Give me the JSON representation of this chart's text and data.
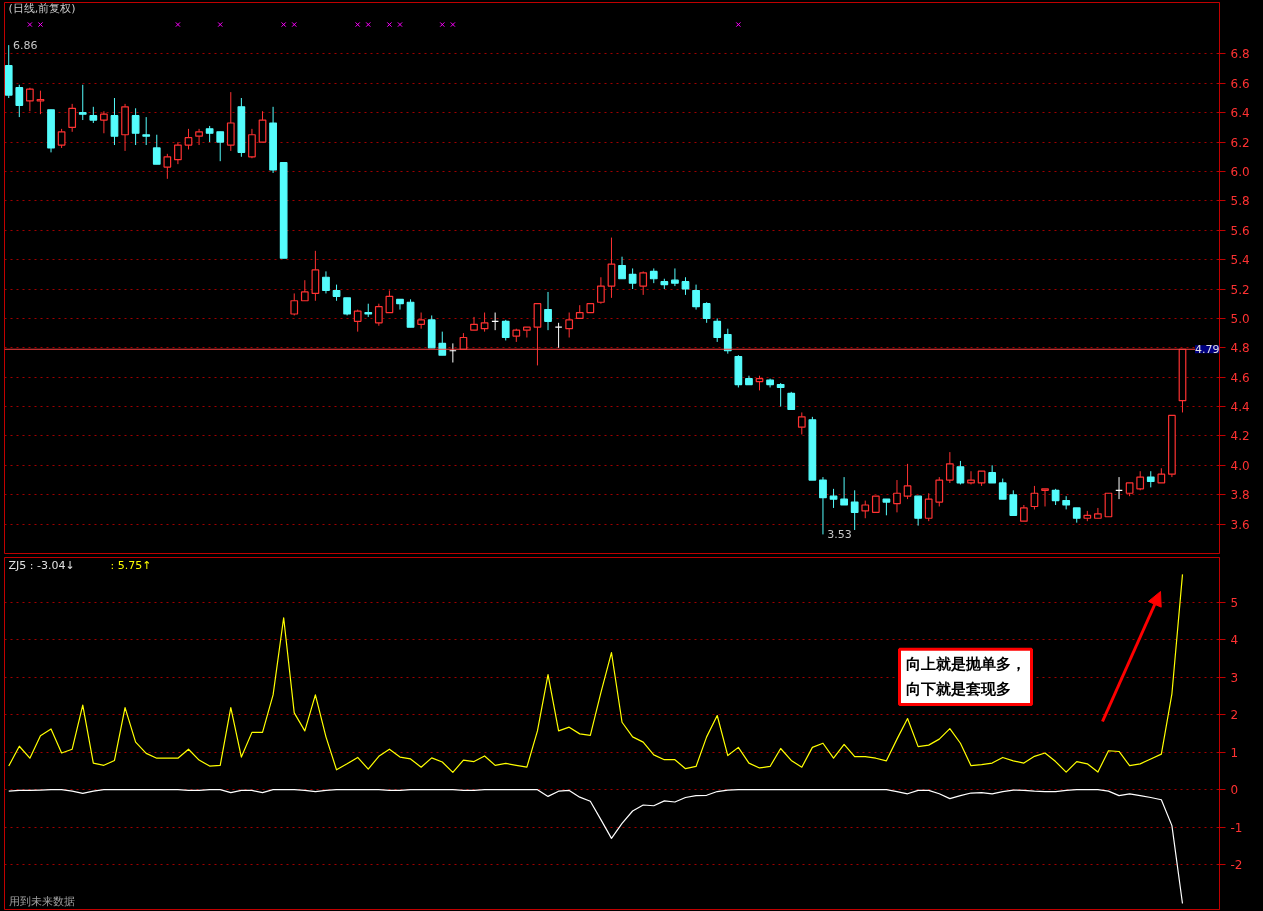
{
  "chart_data": [
    {
      "type": "candlestick",
      "title": "(日线,前复权)",
      "categories": [
        null,
        null,
        null,
        null,
        null,
        null,
        null,
        null,
        null,
        null,
        null,
        null,
        null,
        null,
        null,
        null,
        null,
        null,
        null,
        null,
        null,
        null,
        null,
        null,
        null,
        null,
        null,
        null,
        null,
        null,
        null,
        null,
        null,
        null,
        null,
        null,
        null,
        null,
        null,
        null,
        null,
        null,
        null,
        null,
        null,
        null,
        null,
        null,
        null,
        null,
        null,
        null,
        null,
        null,
        null,
        null,
        null,
        null,
        null,
        null,
        null,
        null,
        null,
        null,
        null,
        null,
        null,
        null,
        null,
        null,
        null,
        null,
        null,
        null,
        null,
        null,
        null,
        null,
        null,
        null,
        null,
        null,
        null,
        null,
        null,
        null,
        null,
        null,
        null,
        null,
        null,
        null,
        null,
        null,
        null,
        null,
        null,
        null,
        null,
        null,
        null,
        null,
        null,
        null,
        null,
        null,
        null,
        null,
        null,
        null,
        null,
        null
      ],
      "ohlc": [
        [
          6.72,
          6.86,
          6.5,
          6.52
        ],
        [
          6.57,
          6.59,
          6.37,
          6.45
        ],
        [
          6.48,
          6.57,
          6.41,
          6.56
        ],
        [
          6.48,
          6.55,
          6.39,
          6.49
        ],
        [
          6.42,
          6.42,
          6.13,
          6.16
        ],
        [
          6.18,
          6.29,
          6.16,
          6.27
        ],
        [
          6.3,
          6.46,
          6.27,
          6.43
        ],
        [
          6.4,
          6.59,
          6.35,
          6.39
        ],
        [
          6.38,
          6.44,
          6.33,
          6.35
        ],
        [
          6.35,
          6.41,
          6.26,
          6.39
        ],
        [
          6.38,
          6.5,
          6.18,
          6.24
        ],
        [
          6.25,
          6.46,
          6.14,
          6.44
        ],
        [
          6.38,
          6.43,
          6.18,
          6.26
        ],
        [
          6.25,
          6.37,
          6.18,
          6.24
        ],
        [
          6.16,
          6.25,
          6.05,
          6.05
        ],
        [
          6.03,
          6.12,
          5.95,
          6.1
        ],
        [
          6.08,
          6.2,
          6.05,
          6.18
        ],
        [
          6.18,
          6.29,
          6.15,
          6.23
        ],
        [
          6.24,
          6.29,
          6.18,
          6.27
        ],
        [
          6.29,
          6.31,
          6.2,
          6.26
        ],
        [
          6.27,
          6.27,
          6.07,
          6.2
        ],
        [
          6.18,
          6.54,
          6.14,
          6.33
        ],
        [
          6.44,
          6.5,
          6.1,
          6.13
        ],
        [
          6.1,
          6.29,
          6.09,
          6.25
        ],
        [
          6.2,
          6.41,
          6.2,
          6.35
        ],
        [
          6.33,
          6.44,
          5.99,
          6.01
        ],
        [
          6.06,
          6.06,
          5.41,
          5.41
        ],
        [
          5.03,
          5.17,
          5.02,
          5.12
        ],
        [
          5.12,
          5.26,
          5.12,
          5.18
        ],
        [
          5.17,
          5.46,
          5.12,
          5.33
        ],
        [
          5.28,
          5.32,
          5.17,
          5.19
        ],
        [
          5.19,
          5.23,
          5.12,
          5.15
        ],
        [
          5.14,
          5.14,
          5.02,
          5.03
        ],
        [
          4.98,
          5.06,
          4.91,
          5.05
        ],
        [
          5.04,
          5.1,
          5.01,
          5.03
        ],
        [
          4.97,
          5.1,
          4.95,
          5.08
        ],
        [
          5.04,
          5.19,
          5.04,
          5.15
        ],
        [
          5.13,
          5.13,
          5.06,
          5.1
        ],
        [
          5.11,
          5.13,
          4.94,
          4.94
        ],
        [
          4.96,
          5.04,
          4.93,
          4.99
        ],
        [
          4.99,
          5.02,
          4.8,
          4.8
        ],
        [
          4.83,
          4.91,
          4.75,
          4.75
        ],
        [
          4.78,
          4.83,
          4.7,
          4.78
        ],
        [
          4.79,
          4.9,
          4.79,
          4.87
        ],
        [
          4.92,
          5.01,
          4.92,
          4.96
        ],
        [
          4.93,
          5.04,
          4.91,
          4.97
        ],
        [
          4.98,
          5.04,
          4.92,
          4.98
        ],
        [
          4.98,
          4.99,
          4.85,
          4.87
        ],
        [
          4.88,
          4.93,
          4.84,
          4.92
        ],
        [
          4.92,
          4.94,
          4.87,
          4.94
        ],
        [
          4.94,
          5.1,
          4.68,
          5.1
        ],
        [
          5.06,
          5.18,
          4.92,
          4.98
        ],
        [
          4.94,
          4.97,
          4.8,
          4.94
        ],
        [
          4.93,
          5.04,
          4.87,
          4.99
        ],
        [
          5.0,
          5.09,
          5.0,
          5.04
        ],
        [
          5.04,
          5.1,
          5.04,
          5.1
        ],
        [
          5.11,
          5.28,
          5.1,
          5.22
        ],
        [
          5.22,
          5.55,
          5.14,
          5.37
        ],
        [
          5.36,
          5.42,
          5.27,
          5.27
        ],
        [
          5.3,
          5.34,
          5.2,
          5.24
        ],
        [
          5.22,
          5.32,
          5.16,
          5.31
        ],
        [
          5.32,
          5.34,
          5.24,
          5.27
        ],
        [
          5.25,
          5.27,
          5.2,
          5.23
        ],
        [
          5.26,
          5.34,
          5.22,
          5.24
        ],
        [
          5.25,
          5.28,
          5.16,
          5.2
        ],
        [
          5.19,
          5.23,
          5.06,
          5.08
        ],
        [
          5.1,
          5.11,
          4.97,
          5.0
        ],
        [
          4.98,
          5.0,
          4.84,
          4.87
        ],
        [
          4.89,
          4.93,
          4.76,
          4.78
        ],
        [
          4.74,
          4.75,
          4.53,
          4.55
        ],
        [
          4.59,
          4.61,
          4.55,
          4.55
        ],
        [
          4.57,
          4.61,
          4.51,
          4.59
        ],
        [
          4.58,
          4.59,
          4.53,
          4.55
        ],
        [
          4.55,
          4.56,
          4.4,
          4.53
        ],
        [
          4.49,
          4.5,
          4.38,
          4.38
        ],
        [
          4.26,
          4.36,
          4.21,
          4.33
        ],
        [
          4.31,
          4.33,
          3.9,
          3.9
        ],
        [
          3.9,
          3.92,
          3.53,
          3.78
        ],
        [
          3.79,
          3.84,
          3.71,
          3.77
        ],
        [
          3.77,
          3.92,
          3.73,
          3.73
        ],
        [
          3.75,
          3.83,
          3.56,
          3.68
        ],
        [
          3.69,
          3.76,
          3.64,
          3.73
        ],
        [
          3.68,
          3.79,
          3.68,
          3.79
        ],
        [
          3.77,
          3.77,
          3.66,
          3.75
        ],
        [
          3.74,
          3.9,
          3.68,
          3.81
        ],
        [
          3.79,
          4.01,
          3.77,
          3.86
        ],
        [
          3.79,
          3.79,
          3.59,
          3.64
        ],
        [
          3.64,
          3.81,
          3.62,
          3.77
        ],
        [
          3.75,
          3.92,
          3.72,
          3.9
        ],
        [
          3.9,
          4.09,
          3.88,
          4.01
        ],
        [
          3.99,
          4.03,
          3.87,
          3.88
        ],
        [
          3.88,
          3.96,
          3.87,
          3.9
        ],
        [
          3.88,
          3.96,
          3.86,
          3.96
        ],
        [
          3.95,
          4.0,
          3.88,
          3.88
        ],
        [
          3.88,
          3.91,
          3.77,
          3.77
        ],
        [
          3.8,
          3.83,
          3.66,
          3.66
        ],
        [
          3.62,
          3.73,
          3.62,
          3.71
        ],
        [
          3.72,
          3.86,
          3.7,
          3.81
        ],
        [
          3.83,
          3.84,
          3.72,
          3.84
        ],
        [
          3.83,
          3.84,
          3.73,
          3.76
        ],
        [
          3.76,
          3.79,
          3.7,
          3.73
        ],
        [
          3.71,
          3.71,
          3.61,
          3.64
        ],
        [
          3.64,
          3.69,
          3.62,
          3.66
        ],
        [
          3.64,
          3.71,
          3.64,
          3.67
        ],
        [
          3.65,
          3.81,
          3.65,
          3.81
        ],
        [
          3.83,
          3.92,
          3.77,
          3.83
        ],
        [
          3.81,
          3.88,
          3.79,
          3.88
        ],
        [
          3.84,
          3.96,
          3.83,
          3.92
        ],
        [
          3.92,
          3.96,
          3.85,
          3.89
        ],
        [
          3.88,
          3.98,
          3.88,
          3.94
        ],
        [
          3.94,
          4.34,
          3.92,
          4.34
        ],
        [
          4.44,
          4.79,
          4.36,
          4.79
        ]
      ],
      "colors": [
        "#54fcfc",
        "#54fcfc",
        "#ff3232",
        "#ff3232",
        "#54fcfc",
        "#ff3232",
        "#ff3232",
        "#54fcfc",
        "#54fcfc",
        "#ff3232",
        "#54fcfc",
        "#ff3232",
        "#54fcfc",
        "#54fcfc",
        "#54fcfc",
        "#ff3232",
        "#ff3232",
        "#ff3232",
        "#ff3232",
        "#54fcfc",
        "#54fcfc",
        "#ff3232",
        "#54fcfc",
        "#ff3232",
        "#ff3232",
        "#54fcfc",
        "#54fcfc",
        "#ff3232",
        "#ff3232",
        "#ff3232",
        "#54fcfc",
        "#54fcfc",
        "#54fcfc",
        "#ff3232",
        "#54fcfc",
        "#ff3232",
        "#ff3232",
        "#54fcfc",
        "#54fcfc",
        "#ff3232",
        "#54fcfc",
        "#54fcfc",
        "#ffffff",
        "#ff3232",
        "#ff3232",
        "#ff3232",
        "#ffffff",
        "#54fcfc",
        "#ff3232",
        "#ff3232",
        "#ff3232",
        "#54fcfc",
        "#ffffff",
        "#ff3232",
        "#ff3232",
        "#ff3232",
        "#ff3232",
        "#ff3232",
        "#54fcfc",
        "#54fcfc",
        "#ff3232",
        "#54fcfc",
        "#54fcfc",
        "#54fcfc",
        "#54fcfc",
        "#54fcfc",
        "#54fcfc",
        "#54fcfc",
        "#54fcfc",
        "#54fcfc",
        "#54fcfc",
        "#ff3232",
        "#54fcfc",
        "#54fcfc",
        "#54fcfc",
        "#ff3232",
        "#54fcfc",
        "#54fcfc",
        "#54fcfc",
        "#54fcfc",
        "#54fcfc",
        "#ff3232",
        "#ff3232",
        "#54fcfc",
        "#ff3232",
        "#ff3232",
        "#54fcfc",
        "#ff3232",
        "#ff3232",
        "#ff3232",
        "#54fcfc",
        "#ff3232",
        "#ff3232",
        "#54fcfc",
        "#54fcfc",
        "#54fcfc",
        "#ff3232",
        "#ff3232",
        "#ff3232",
        "#54fcfc",
        "#54fcfc",
        "#54fcfc",
        "#ff3232",
        "#ff3232",
        "#ff3232",
        "#ffffff",
        "#ff3232",
        "#ff3232",
        "#54fcfc",
        "#ff3232",
        "#ff3232",
        "#ff3232"
      ],
      "series": [
        {
          "type": "scatter",
          "marker": "cross",
          "color": "#ff00ff",
          "values": [
            null,
            null,
            7.0,
            7.0,
            null,
            null,
            null,
            null,
            null,
            null,
            null,
            null,
            null,
            null,
            null,
            null,
            7.0,
            null,
            null,
            null,
            7.0,
            null,
            null,
            null,
            null,
            null,
            7.0,
            7.0,
            null,
            null,
            null,
            null,
            null,
            7.0,
            7.0,
            null,
            7.0,
            7.0,
            null,
            null,
            null,
            7.0,
            7.0,
            null,
            null,
            null,
            null,
            null,
            null,
            null,
            null,
            null,
            null,
            null,
            null,
            null,
            null,
            null,
            null,
            null,
            null,
            null,
            null,
            null,
            null,
            null,
            null,
            null,
            null,
            7.0,
            null,
            null,
            null,
            null,
            null,
            null,
            null,
            null,
            null,
            null,
            null,
            null,
            null,
            null,
            null,
            null,
            null,
            null,
            null,
            null,
            null,
            null,
            null,
            null,
            null,
            null,
            null,
            null,
            null,
            null,
            null,
            null,
            null,
            null,
            null,
            null,
            null,
            null,
            null,
            null,
            null,
            null
          ]
        }
      ],
      "ylim": [
        3.4,
        7.15
      ],
      "yticks": [
        3.6,
        3.8,
        {
          "value": 4.0,
          "label": "4.0"
        },
        4.2,
        4.4,
        4.6,
        4.8,
        {
          "value": 5.0,
          "label": "5.0"
        },
        5.2,
        5.4,
        5.6,
        5.8,
        {
          "value": 6.0,
          "label": "6.0"
        },
        6.2,
        6.4,
        6.6,
        6.8
      ],
      "grid": "y",
      "tick_labels": "y",
      "ref_lines": [
        {
          "axis": "y",
          "value": 4.79,
          "label": "4.79",
          "color": "#ff4040"
        }
      ],
      "annotations": [
        "6.86",
        "3.53"
      ]
    },
    {
      "type": "line",
      "categories": [
        null,
        null,
        null,
        null,
        null,
        null,
        null,
        null,
        null,
        null,
        null,
        null,
        null,
        null,
        null,
        null,
        null,
        null,
        null,
        null,
        null,
        null,
        null,
        null,
        null,
        null,
        null,
        null,
        null,
        null,
        null,
        null,
        null,
        null,
        null,
        null,
        null,
        null,
        null,
        null,
        null,
        null,
        null,
        null,
        null,
        null,
        null,
        null,
        null,
        null,
        null,
        null,
        null,
        null,
        null,
        null,
        null,
        null,
        null,
        null,
        null,
        null,
        null,
        null,
        null,
        null,
        null,
        null,
        null,
        null,
        null,
        null,
        null,
        null,
        null,
        null,
        null,
        null,
        null,
        null,
        null,
        null,
        null,
        null,
        null,
        null,
        null,
        null,
        null,
        null,
        null,
        null,
        null,
        null,
        null,
        null,
        null,
        null,
        null,
        null,
        null,
        null,
        null,
        null,
        null,
        null,
        null,
        null,
        null,
        null,
        null,
        null
      ],
      "series": [
        {
          "color": "#ffff00",
          "values": [
            0.63,
            1.16,
            0.84,
            1.44,
            1.62,
            0.98,
            1.08,
            2.26,
            0.71,
            0.65,
            0.78,
            2.19,
            1.27,
            0.97,
            0.84,
            0.84,
            0.84,
            1.08,
            0.79,
            0.63,
            0.65,
            2.19,
            0.87,
            1.53,
            1.53,
            2.53,
            4.59,
            2.05,
            1.57,
            2.53,
            1.41,
            0.53,
            0.69,
            0.86,
            0.55,
            0.89,
            1.08,
            0.87,
            0.82,
            0.6,
            0.85,
            0.74,
            0.46,
            0.79,
            0.75,
            0.9,
            0.65,
            0.7,
            0.65,
            0.6,
            1.57,
            3.07,
            1.57,
            1.67,
            1.49,
            1.45,
            2.59,
            3.66,
            1.8,
            1.41,
            1.27,
            0.93,
            0.8,
            0.8,
            0.56,
            0.62,
            1.41,
            1.98,
            0.91,
            1.13,
            0.71,
            0.58,
            0.62,
            1.1,
            0.78,
            0.6,
            1.13,
            1.24,
            0.84,
            1.21,
            0.88,
            0.88,
            0.84,
            0.77,
            1.35,
            1.9,
            1.15,
            1.19,
            1.35,
            1.63,
            1.24,
            0.64,
            0.67,
            0.71,
            0.86,
            0.77,
            0.71,
            0.89,
            0.98,
            0.75,
            0.47,
            0.75,
            0.69,
            0.47,
            1.04,
            1.02,
            0.64,
            0.69,
            0.82,
            0.95,
            2.56,
            5.75
          ]
        },
        {
          "color": "#ffffff",
          "values": [
            -0.04,
            -0.02,
            -0.02,
            -0.01,
            0,
            0,
            -0.04,
            -0.1,
            -0.04,
            0,
            0,
            0,
            0,
            0,
            0,
            0,
            0,
            -0.02,
            -0.02,
            0,
            0,
            -0.08,
            -0.02,
            -0.02,
            -0.08,
            0,
            0,
            0,
            -0.02,
            -0.05,
            -0.02,
            0,
            0,
            0,
            0,
            0,
            -0.02,
            -0.02,
            0,
            0,
            0,
            0,
            0,
            -0.02,
            -0.02,
            0,
            0,
            0,
            0,
            0,
            0,
            -0.18,
            -0.04,
            -0.02,
            -0.2,
            -0.31,
            -0.8,
            -1.3,
            -0.9,
            -0.57,
            -0.41,
            -0.43,
            -0.3,
            -0.33,
            -0.21,
            -0.16,
            -0.15,
            -0.05,
            -0.01,
            0,
            0,
            0,
            0,
            0,
            0,
            0,
            0,
            0,
            0,
            0,
            0,
            0,
            0,
            0,
            -0.05,
            -0.11,
            -0.02,
            -0.02,
            -0.11,
            -0.24,
            -0.16,
            -0.09,
            -0.08,
            -0.11,
            -0.05,
            -0.01,
            -0.02,
            -0.04,
            -0.05,
            -0.05,
            -0.02,
            0,
            0,
            0,
            -0.04,
            -0.16,
            -0.11,
            -0.16,
            -0.21,
            -0.27,
            -0.96,
            -3.04
          ]
        }
      ],
      "ylim": [
        -3.2,
        6.2
      ],
      "yticks": [
        -2,
        -1,
        0,
        1,
        2,
        3,
        4,
        5
      ],
      "grid": "y",
      "tick_labels": "y",
      "annotations": [
        "ZJ5 : -3.04↓",
        ": 5.75↑",
        "向上就是抛单多，",
        "向下就是套现多",
        "用到未来数据"
      ]
    }
  ]
}
